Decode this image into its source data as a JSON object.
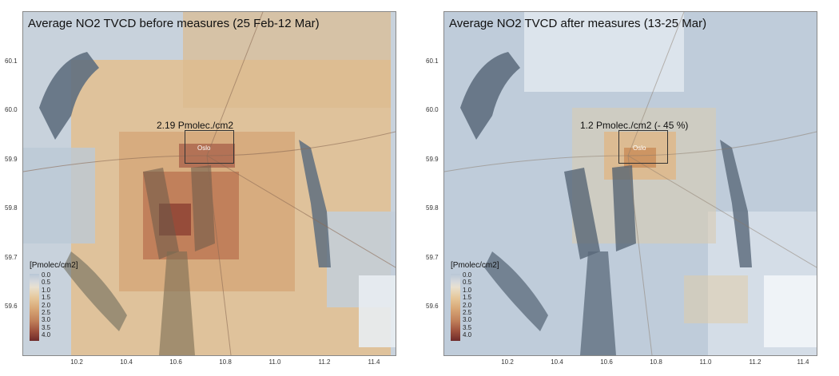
{
  "panels": [
    {
      "title": "Average NO2 TVCD before measures (25 Feb-12 Mar)",
      "annotation": "2.19 Pmolec./cm2",
      "city_label": "Oslo"
    },
    {
      "title": "Average NO2 TVCD after measures (13-25 Mar)",
      "annotation": "1.2 Pmolec./cm2 (- 45 %)",
      "city_label": "Oslo"
    }
  ],
  "axes": {
    "y_ticks": [
      "60.1",
      "60.0",
      "59.9",
      "59.8",
      "59.7",
      "59.6"
    ],
    "x_ticks": [
      "10.2",
      "10.4",
      "10.6",
      "10.8",
      "11.0",
      "11.2",
      "11.4"
    ]
  },
  "legend": {
    "title": "[Pmolec/cm2]",
    "labels": [
      "0.0",
      "0.5",
      "1.0",
      "1.5",
      "2.0",
      "2.5",
      "3.0",
      "3.5",
      "4.0"
    ]
  },
  "colors": {
    "low": "#b9c7d6",
    "mid": "#e6c79a",
    "high": "#6e2a2a",
    "water": "#5f6f7f"
  }
}
